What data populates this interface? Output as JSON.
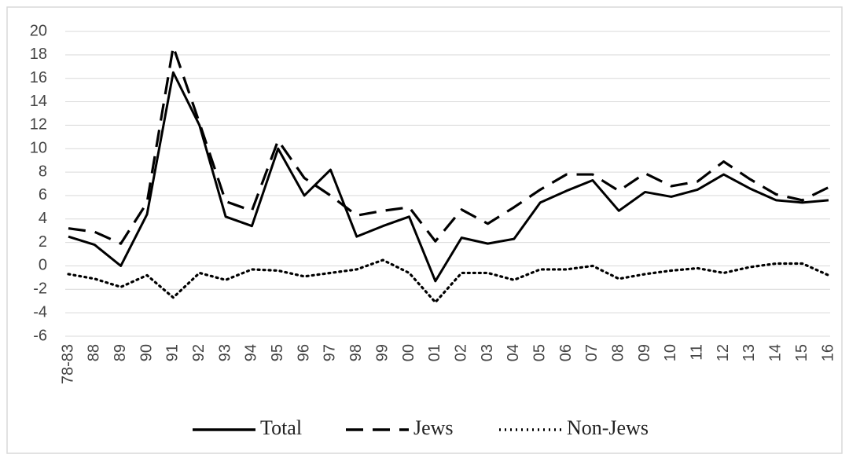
{
  "chart_data": {
    "type": "line",
    "categories": [
      "78-83",
      "88",
      "89",
      "90",
      "91",
      "92",
      "93",
      "94",
      "95",
      "96",
      "97",
      "98",
      "99",
      "00",
      "01",
      "02",
      "03",
      "04",
      "05",
      "06",
      "07",
      "08",
      "09",
      "10",
      "11",
      "12",
      "13",
      "14",
      "15",
      "16"
    ],
    "series": [
      {
        "name": "Total",
        "color": "#000000",
        "style": "solid",
        "values": [
          2.5,
          1.8,
          0,
          4.4,
          16.5,
          12,
          4.2,
          3.4,
          10,
          6,
          8.2,
          2.5,
          3.4,
          4.2,
          -1.3,
          2.4,
          1.9,
          2.3,
          5.4,
          6.4,
          7.3,
          4.7,
          6.3,
          5.9,
          6.5,
          7.8,
          6.6,
          5.6,
          5.4,
          5.6
        ]
      },
      {
        "name": "Jews",
        "color": "#000000",
        "style": "dashed",
        "values": [
          3.2,
          2.9,
          1.9,
          5.4,
          18.7,
          12.2,
          5.5,
          4.7,
          10.7,
          7.5,
          6.0,
          4.3,
          4.7,
          5.0,
          2.1,
          4.8,
          3.6,
          5.0,
          6.5,
          7.8,
          7.8,
          6.4,
          7.9,
          6.8,
          7.2,
          8.9,
          7.4,
          6.1,
          5.6,
          6.7
        ]
      },
      {
        "name": "Non-Jews",
        "color": "#000000",
        "style": "dotted",
        "values": [
          -0.7,
          -1.1,
          -1.8,
          -0.8,
          -2.7,
          -0.6,
          -1.2,
          -0.3,
          -0.4,
          -0.9,
          -0.6,
          -0.3,
          0.5,
          -0.6,
          -3.1,
          -0.6,
          -0.6,
          -1.2,
          -0.3,
          -0.3,
          0.0,
          -1.1,
          -0.7,
          -0.4,
          -0.2,
          -0.6,
          -0.1,
          0.2,
          0.2,
          -0.8
        ]
      }
    ],
    "ylim": [
      -6,
      20
    ],
    "yticks": [
      -6,
      -4,
      -2,
      0,
      2,
      4,
      6,
      8,
      10,
      12,
      14,
      16,
      18,
      20
    ],
    "grid": true,
    "legend": "bottom"
  }
}
